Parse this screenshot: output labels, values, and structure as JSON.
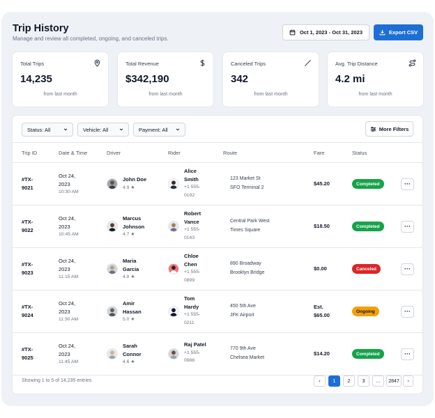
{
  "header": {
    "title": "Trip History",
    "subtitle": "Manage and review all completed, ongoing, and canceled trips.",
    "date_range": "Oct 1, 2023 - Oct 31, 2023",
    "export_label": "Export CSV"
  },
  "stats": [
    {
      "label": "Total Trips",
      "value": "14,235",
      "sub": "from last month",
      "icon": "map-pin-icon"
    },
    {
      "label": "Total Revenue",
      "value": "$342,190",
      "sub": "from last month",
      "icon": "dollar-icon"
    },
    {
      "label": "Canceled Trips",
      "value": "342",
      "sub": "from last month",
      "icon": "slash-icon"
    },
    {
      "label": "Avg. Trip Distance",
      "value": "4.2 mi",
      "sub": "from last month",
      "icon": "route-icon"
    }
  ],
  "filters": {
    "status": "Status: All",
    "vehicle": "Vehicle: All",
    "payment": "Payment: All",
    "more": "More Filters"
  },
  "table": {
    "columns": [
      "Trip ID",
      "Date & Time",
      "Driver",
      "Rider",
      "Route",
      "Fare",
      "Status"
    ],
    "rows": [
      {
        "id1": "#TX-",
        "id2": "9021",
        "date1": "Oct 24,",
        "date2": "2023",
        "time": "10:30 AM",
        "driver1": "John Doe",
        "driver2": "",
        "driver_rating": "4.9 ★",
        "rider1": "Alice",
        "rider2": "Smith",
        "phone1": "+1 555-",
        "phone2": "0192",
        "route_from": "123 Market St",
        "route_to": "SFO Terminal 2",
        "fare1": "$45.20",
        "fare2": "",
        "status": "Completed"
      },
      {
        "id1": "#TX-",
        "id2": "9022",
        "date1": "Oct 24,",
        "date2": "2023",
        "time": "10:45 AM",
        "driver1": "Marcus",
        "driver2": "Johnson",
        "driver_rating": "4.7 ★",
        "rider1": "Robert",
        "rider2": "Vance",
        "phone1": "+1 555-",
        "phone2": "0143",
        "route_from": "Central Park West",
        "route_to": "Times Square",
        "fare1": "$18.50",
        "fare2": "",
        "status": "Completed"
      },
      {
        "id1": "#TX-",
        "id2": "9023",
        "date1": "Oct 24,",
        "date2": "2023",
        "time": "11:15 AM",
        "driver1": "Maria",
        "driver2": "Garcia",
        "driver_rating": "4.8 ★",
        "rider1": "Chloe",
        "rider2": "Chen",
        "phone1": "+1 555-",
        "phone2": "0899",
        "route_from": "890 Broadway",
        "route_to": "Brooklyn Bridge",
        "fare1": "$0.00",
        "fare2": "",
        "status": "Canceled"
      },
      {
        "id1": "#TX-",
        "id2": "9024",
        "date1": "Oct 24,",
        "date2": "2023",
        "time": "11:30 AM",
        "driver1": "Amir",
        "driver2": "Hassan",
        "driver_rating": "5.0 ★",
        "rider1": "Tom",
        "rider2": "Hardy",
        "phone1": "+1 555-",
        "phone2": "0211",
        "route_from": "450 5th Ave",
        "route_to": "JFK Airport",
        "fare1": "Est.",
        "fare2": "$65.00",
        "status": "Ongoing"
      },
      {
        "id1": "#TX-",
        "id2": "9025",
        "date1": "Oct 24,",
        "date2": "2023",
        "time": "11:45 AM",
        "driver1": "Sarah",
        "driver2": "Connor",
        "driver_rating": "4.6 ★",
        "rider1": "Raj Patel",
        "rider2": "",
        "phone1": "+1 555-",
        "phone2": "0988",
        "route_from": "770 9th Ave",
        "route_to": "Chelsea Market",
        "fare1": "$14.20",
        "fare2": "",
        "status": "Completed"
      }
    ],
    "action_label": "···"
  },
  "status_colors": {
    "Completed": {
      "bg": "#16a34a",
      "fg": "#ffffff"
    },
    "Canceled": {
      "bg": "#dc2626",
      "fg": "#ffffff"
    },
    "Ongoing": {
      "bg": "#f59e0b",
      "fg": "#111827"
    }
  },
  "pagination": {
    "info": "Showing 1 to 5 of 14,235 entries",
    "prev": "‹",
    "pages": [
      "1",
      "2",
      "3",
      "...",
      "2847"
    ],
    "next": "›"
  }
}
